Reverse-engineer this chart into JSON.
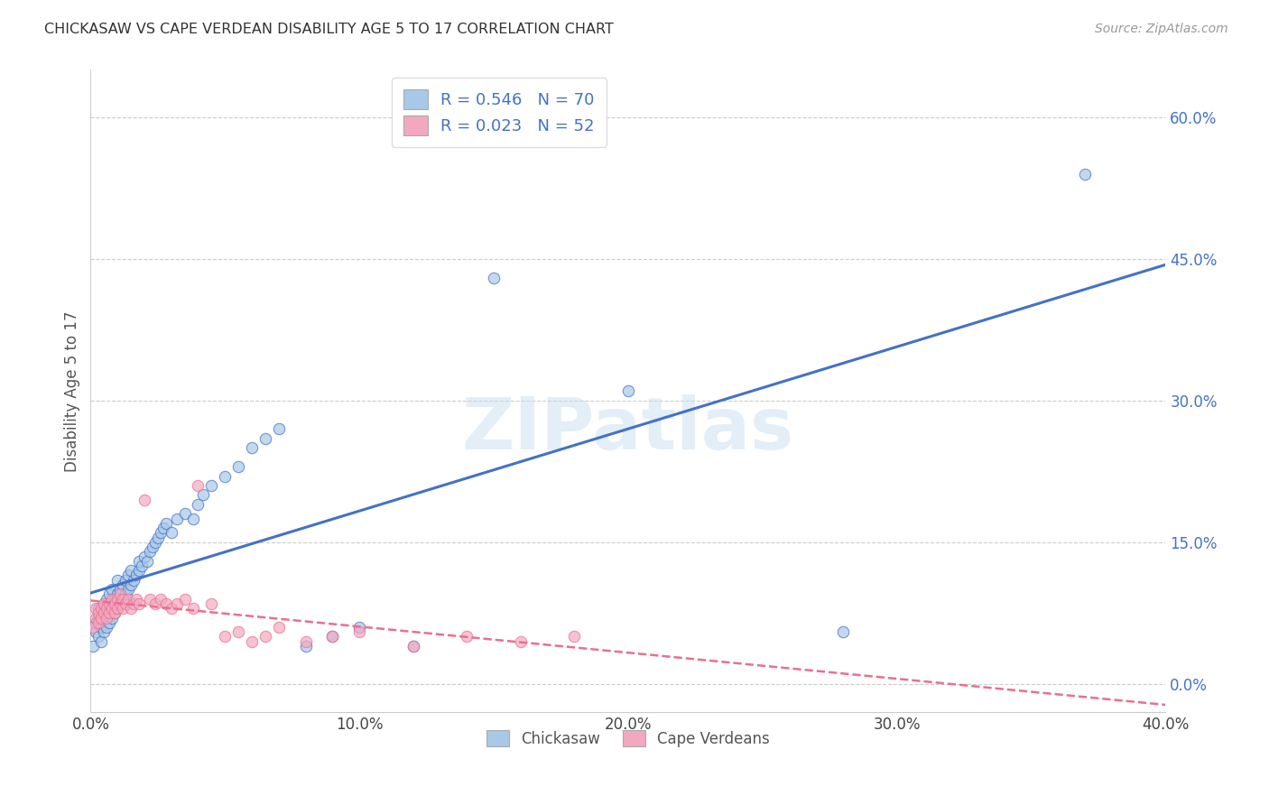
{
  "title": "CHICKASAW VS CAPE VERDEAN DISABILITY AGE 5 TO 17 CORRELATION CHART",
  "source": "Source: ZipAtlas.com",
  "ylabel": "Disability Age 5 to 17",
  "xlim": [
    0.0,
    0.4
  ],
  "ylim": [
    -0.03,
    0.65
  ],
  "yticks": [
    0.0,
    0.15,
    0.3,
    0.45,
    0.6
  ],
  "xticks": [
    0.0,
    0.1,
    0.2,
    0.3,
    0.4
  ],
  "ytick_labels": [
    "0.0%",
    "15.0%",
    "30.0%",
    "45.0%",
    "60.0%"
  ],
  "xtick_labels": [
    "0.0%",
    "10.0%",
    "20.0%",
    "30.0%",
    "40.0%"
  ],
  "legend_label1": "R = 0.546   N = 70",
  "legend_label2": "R = 0.023   N = 52",
  "color_blue": "#A8C8E8",
  "color_pink": "#F4A8C0",
  "trendline_blue": "#4472C4",
  "trendline_pink": "#E87090",
  "watermark": "ZIPatlas",
  "bottom_legend_chickasaw": "Chickasaw",
  "bottom_legend_capeverdean": "Cape Verdeans",
  "chickasaw_x": [
    0.001,
    0.002,
    0.002,
    0.003,
    0.003,
    0.003,
    0.004,
    0.004,
    0.004,
    0.005,
    0.005,
    0.005,
    0.006,
    0.006,
    0.006,
    0.007,
    0.007,
    0.007,
    0.008,
    0.008,
    0.008,
    0.009,
    0.009,
    0.01,
    0.01,
    0.01,
    0.011,
    0.011,
    0.012,
    0.012,
    0.013,
    0.013,
    0.014,
    0.014,
    0.015,
    0.015,
    0.016,
    0.017,
    0.018,
    0.018,
    0.019,
    0.02,
    0.021,
    0.022,
    0.023,
    0.024,
    0.025,
    0.026,
    0.027,
    0.028,
    0.03,
    0.032,
    0.035,
    0.038,
    0.04,
    0.042,
    0.045,
    0.05,
    0.055,
    0.06,
    0.065,
    0.07,
    0.08,
    0.09,
    0.1,
    0.12,
    0.15,
    0.2,
    0.28,
    0.37
  ],
  "chickasaw_y": [
    0.04,
    0.055,
    0.065,
    0.05,
    0.07,
    0.08,
    0.045,
    0.06,
    0.075,
    0.055,
    0.07,
    0.085,
    0.06,
    0.075,
    0.09,
    0.065,
    0.08,
    0.095,
    0.07,
    0.085,
    0.1,
    0.075,
    0.09,
    0.08,
    0.095,
    0.11,
    0.085,
    0.1,
    0.09,
    0.105,
    0.095,
    0.11,
    0.1,
    0.115,
    0.105,
    0.12,
    0.11,
    0.115,
    0.12,
    0.13,
    0.125,
    0.135,
    0.13,
    0.14,
    0.145,
    0.15,
    0.155,
    0.16,
    0.165,
    0.17,
    0.16,
    0.175,
    0.18,
    0.175,
    0.19,
    0.2,
    0.21,
    0.22,
    0.23,
    0.25,
    0.26,
    0.27,
    0.04,
    0.05,
    0.06,
    0.04,
    0.43,
    0.31,
    0.055,
    0.54
  ],
  "capeverdean_x": [
    0.001,
    0.002,
    0.002,
    0.003,
    0.003,
    0.004,
    0.004,
    0.005,
    0.005,
    0.006,
    0.006,
    0.007,
    0.007,
    0.008,
    0.008,
    0.009,
    0.009,
    0.01,
    0.01,
    0.011,
    0.011,
    0.012,
    0.012,
    0.013,
    0.014,
    0.015,
    0.016,
    0.017,
    0.018,
    0.02,
    0.022,
    0.024,
    0.026,
    0.028,
    0.03,
    0.032,
    0.035,
    0.038,
    0.04,
    0.045,
    0.05,
    0.055,
    0.06,
    0.065,
    0.07,
    0.08,
    0.09,
    0.1,
    0.12,
    0.14,
    0.16,
    0.18
  ],
  "capeverdean_y": [
    0.06,
    0.07,
    0.08,
    0.065,
    0.075,
    0.07,
    0.08,
    0.075,
    0.085,
    0.07,
    0.08,
    0.075,
    0.085,
    0.08,
    0.09,
    0.075,
    0.085,
    0.08,
    0.09,
    0.085,
    0.095,
    0.08,
    0.09,
    0.085,
    0.09,
    0.08,
    0.085,
    0.09,
    0.085,
    0.195,
    0.09,
    0.085,
    0.09,
    0.085,
    0.08,
    0.085,
    0.09,
    0.08,
    0.21,
    0.085,
    0.05,
    0.055,
    0.045,
    0.05,
    0.06,
    0.045,
    0.05,
    0.055,
    0.04,
    0.05,
    0.045,
    0.05
  ]
}
